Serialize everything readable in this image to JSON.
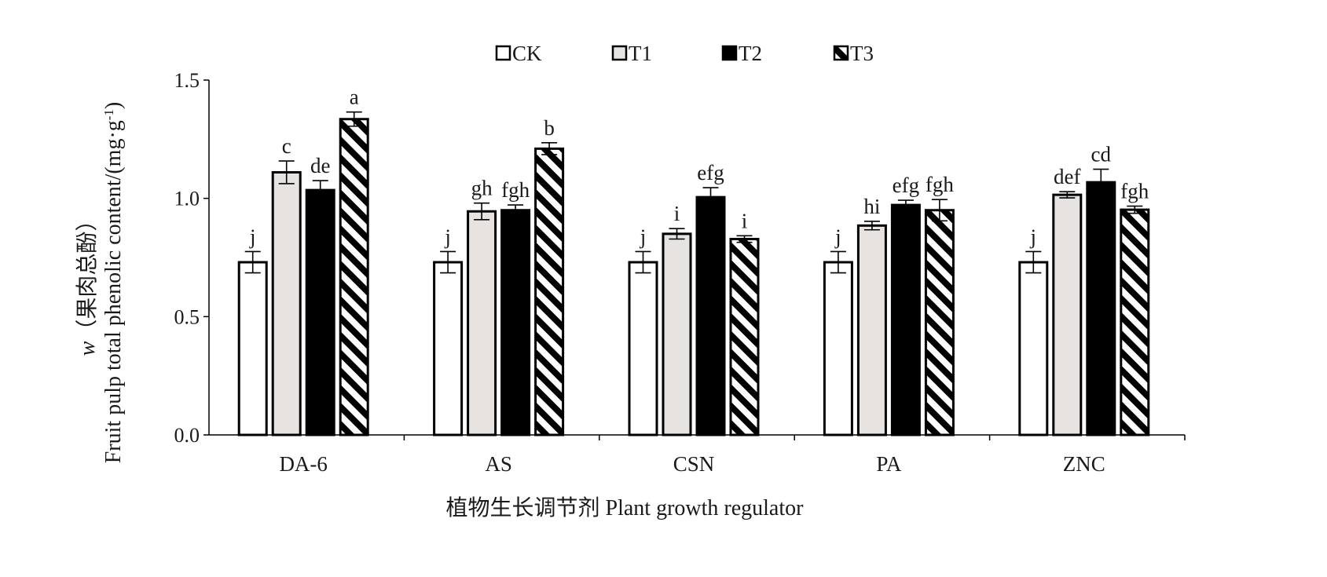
{
  "chart_data": {
    "type": "bar",
    "title": "",
    "xlabel": "植物生长调节剂 Plant growth regulator",
    "ylabel_line1_italic": "w",
    "ylabel_line1_rest": "（果肉总酚）",
    "ylabel_line2_main": "Fruit pulp total phenolic content/(mg·g",
    "ylabel_line2_sup": "-1",
    "ylabel_line2_end": ")",
    "ylim": [
      0,
      1.5
    ],
    "yticks": [
      "0.0",
      "0.5",
      "1.0",
      "1.5"
    ],
    "ytick_values": [
      0,
      0.5,
      1.0,
      1.5
    ],
    "categories": [
      "DA-6",
      "AS",
      "CSN",
      "PA",
      "ZNC"
    ],
    "legend_position": "top-center",
    "series": [
      {
        "name": "CK",
        "fill": "#ffffff",
        "values": [
          0.73,
          0.73,
          0.73,
          0.73,
          0.73
        ],
        "errors": [
          0.045,
          0.045,
          0.045,
          0.045,
          0.045
        ],
        "labels": [
          "j",
          "j",
          "j",
          "j",
          "j"
        ]
      },
      {
        "name": "T1",
        "fill": "#e6e3e1",
        "values": [
          1.11,
          0.945,
          0.85,
          0.885,
          1.015
        ],
        "errors": [
          0.048,
          0.035,
          0.022,
          0.018,
          0.013
        ],
        "labels": [
          "c",
          "gh",
          "i",
          "hi",
          "def"
        ]
      },
      {
        "name": "T2",
        "fill": "#000000",
        "values": [
          1.035,
          0.95,
          1.005,
          0.972,
          1.068
        ],
        "errors": [
          0.04,
          0.022,
          0.04,
          0.02,
          0.055
        ],
        "labels": [
          "de",
          "fgh",
          "efg",
          "efg",
          "cd"
        ]
      },
      {
        "name": "T3",
        "fill": "hatch",
        "values": [
          1.335,
          1.21,
          0.828,
          0.95,
          0.952
        ],
        "errors": [
          0.03,
          0.025,
          0.014,
          0.045,
          0.015
        ],
        "labels": [
          "a",
          "b",
          "i",
          "fgh",
          "fgh"
        ]
      }
    ]
  }
}
